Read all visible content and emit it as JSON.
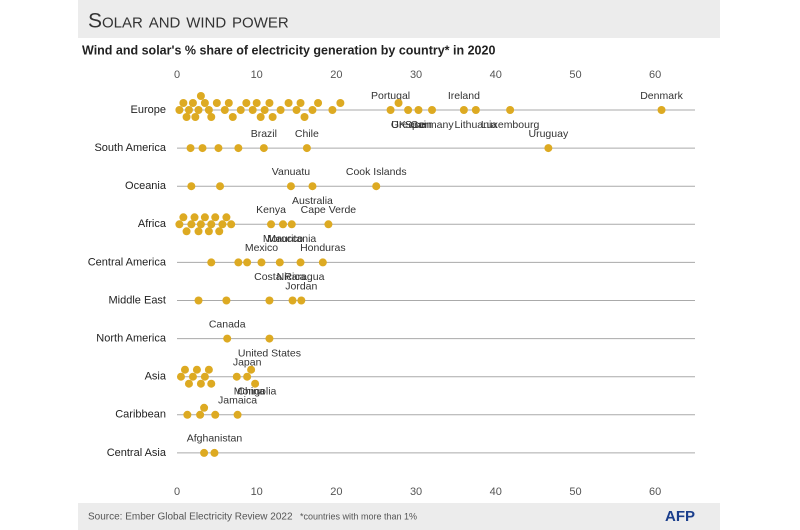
{
  "chart_data": {
    "type": "strip",
    "title": "Solar and wind power",
    "subtitle": "Wind and solar's % share of electricity generation by country* in 2020",
    "color": "#ddaa22",
    "xlim": [
      0,
      65
    ],
    "xticks": [
      0,
      10,
      20,
      30,
      40,
      50,
      60
    ],
    "grid": true,
    "rows": [
      {
        "name": "Europe",
        "values": [
          0.3,
          0.8,
          1.2,
          1.5,
          2,
          2.3,
          2.7,
          3,
          3.5,
          4,
          4.3,
          5,
          6,
          6.5,
          7,
          8,
          8.7,
          9.5,
          10,
          10.5,
          11,
          11.6,
          12,
          13,
          14,
          15,
          15.5,
          16,
          17,
          17.7,
          19.5,
          20.5,
          26.8,
          27.8,
          29,
          30.3,
          32,
          36,
          37.5,
          41.8,
          60.8
        ],
        "labels": [
          null,
          null,
          null,
          null,
          null,
          null,
          null,
          null,
          null,
          null,
          null,
          null,
          null,
          null,
          null,
          null,
          null,
          null,
          null,
          null,
          null,
          null,
          null,
          null,
          null,
          null,
          null,
          null,
          null,
          null,
          null,
          null,
          "Portugal",
          "UK",
          "Greece",
          "Spain",
          "Germany",
          "Ireland",
          "Lithuania",
          "Luxembourg",
          "Denmark"
        ]
      },
      {
        "name": "South America",
        "values": [
          1.7,
          3.2,
          5.2,
          7.7,
          10.9,
          16.3,
          46.6
        ],
        "labels": [
          null,
          null,
          null,
          null,
          "Brazil",
          "Chile",
          "Uruguay"
        ]
      },
      {
        "name": "Oceania",
        "values": [
          1.8,
          5.4,
          14.3,
          17,
          25
        ],
        "labels": [
          null,
          null,
          "Vanuatu",
          "Australia",
          "Cook Islands"
        ]
      },
      {
        "name": "Africa",
        "values": [
          0.3,
          0.8,
          1.2,
          1.8,
          2.2,
          2.7,
          3,
          3.5,
          4,
          4.3,
          4.8,
          5.3,
          5.7,
          6.2,
          6.8,
          11.8,
          13.3,
          14.4,
          19
        ],
        "labels": [
          null,
          null,
          null,
          null,
          null,
          null,
          null,
          null,
          null,
          null,
          null,
          null,
          null,
          null,
          null,
          "Kenya",
          "Morocco",
          "Mauritania",
          "Cape Verde"
        ]
      },
      {
        "name": "Central America",
        "values": [
          4.3,
          7.7,
          8.8,
          10.6,
          12.9,
          15.5,
          18.3
        ],
        "labels": [
          null,
          null,
          null,
          "Mexico",
          "Costa Rica",
          "Nicaragua",
          "Honduras"
        ]
      },
      {
        "name": "Middle East",
        "values": [
          2.7,
          6.2,
          11.6,
          14.5,
          15.6
        ],
        "labels": [
          null,
          null,
          null,
          null,
          "Jordan"
        ]
      },
      {
        "name": "North America",
        "values": [
          6.3,
          11.6
        ],
        "labels": [
          "Canada",
          "United States"
        ]
      },
      {
        "name": "Asia",
        "values": [
          0.5,
          1,
          1.5,
          2,
          2.5,
          3,
          3.5,
          4,
          4.3,
          7.5,
          8.8,
          9.3,
          9.8
        ],
        "labels": [
          null,
          null,
          null,
          null,
          null,
          null,
          null,
          null,
          null,
          null,
          "Japan",
          "China",
          "Mongolia"
        ]
      },
      {
        "name": "Caribbean",
        "values": [
          1.3,
          2.9,
          3.4,
          4.8,
          7.6
        ],
        "labels": [
          null,
          null,
          null,
          null,
          "Jamaica"
        ]
      },
      {
        "name": "Central Asia",
        "values": [
          3.4,
          4.7
        ],
        "labels": [
          null,
          "Afghanistan"
        ]
      }
    ]
  },
  "footer": {
    "source": "Source: Ember Global Electricity Review 2022",
    "note": "*countries with more than 1%",
    "credit": "AFP"
  }
}
